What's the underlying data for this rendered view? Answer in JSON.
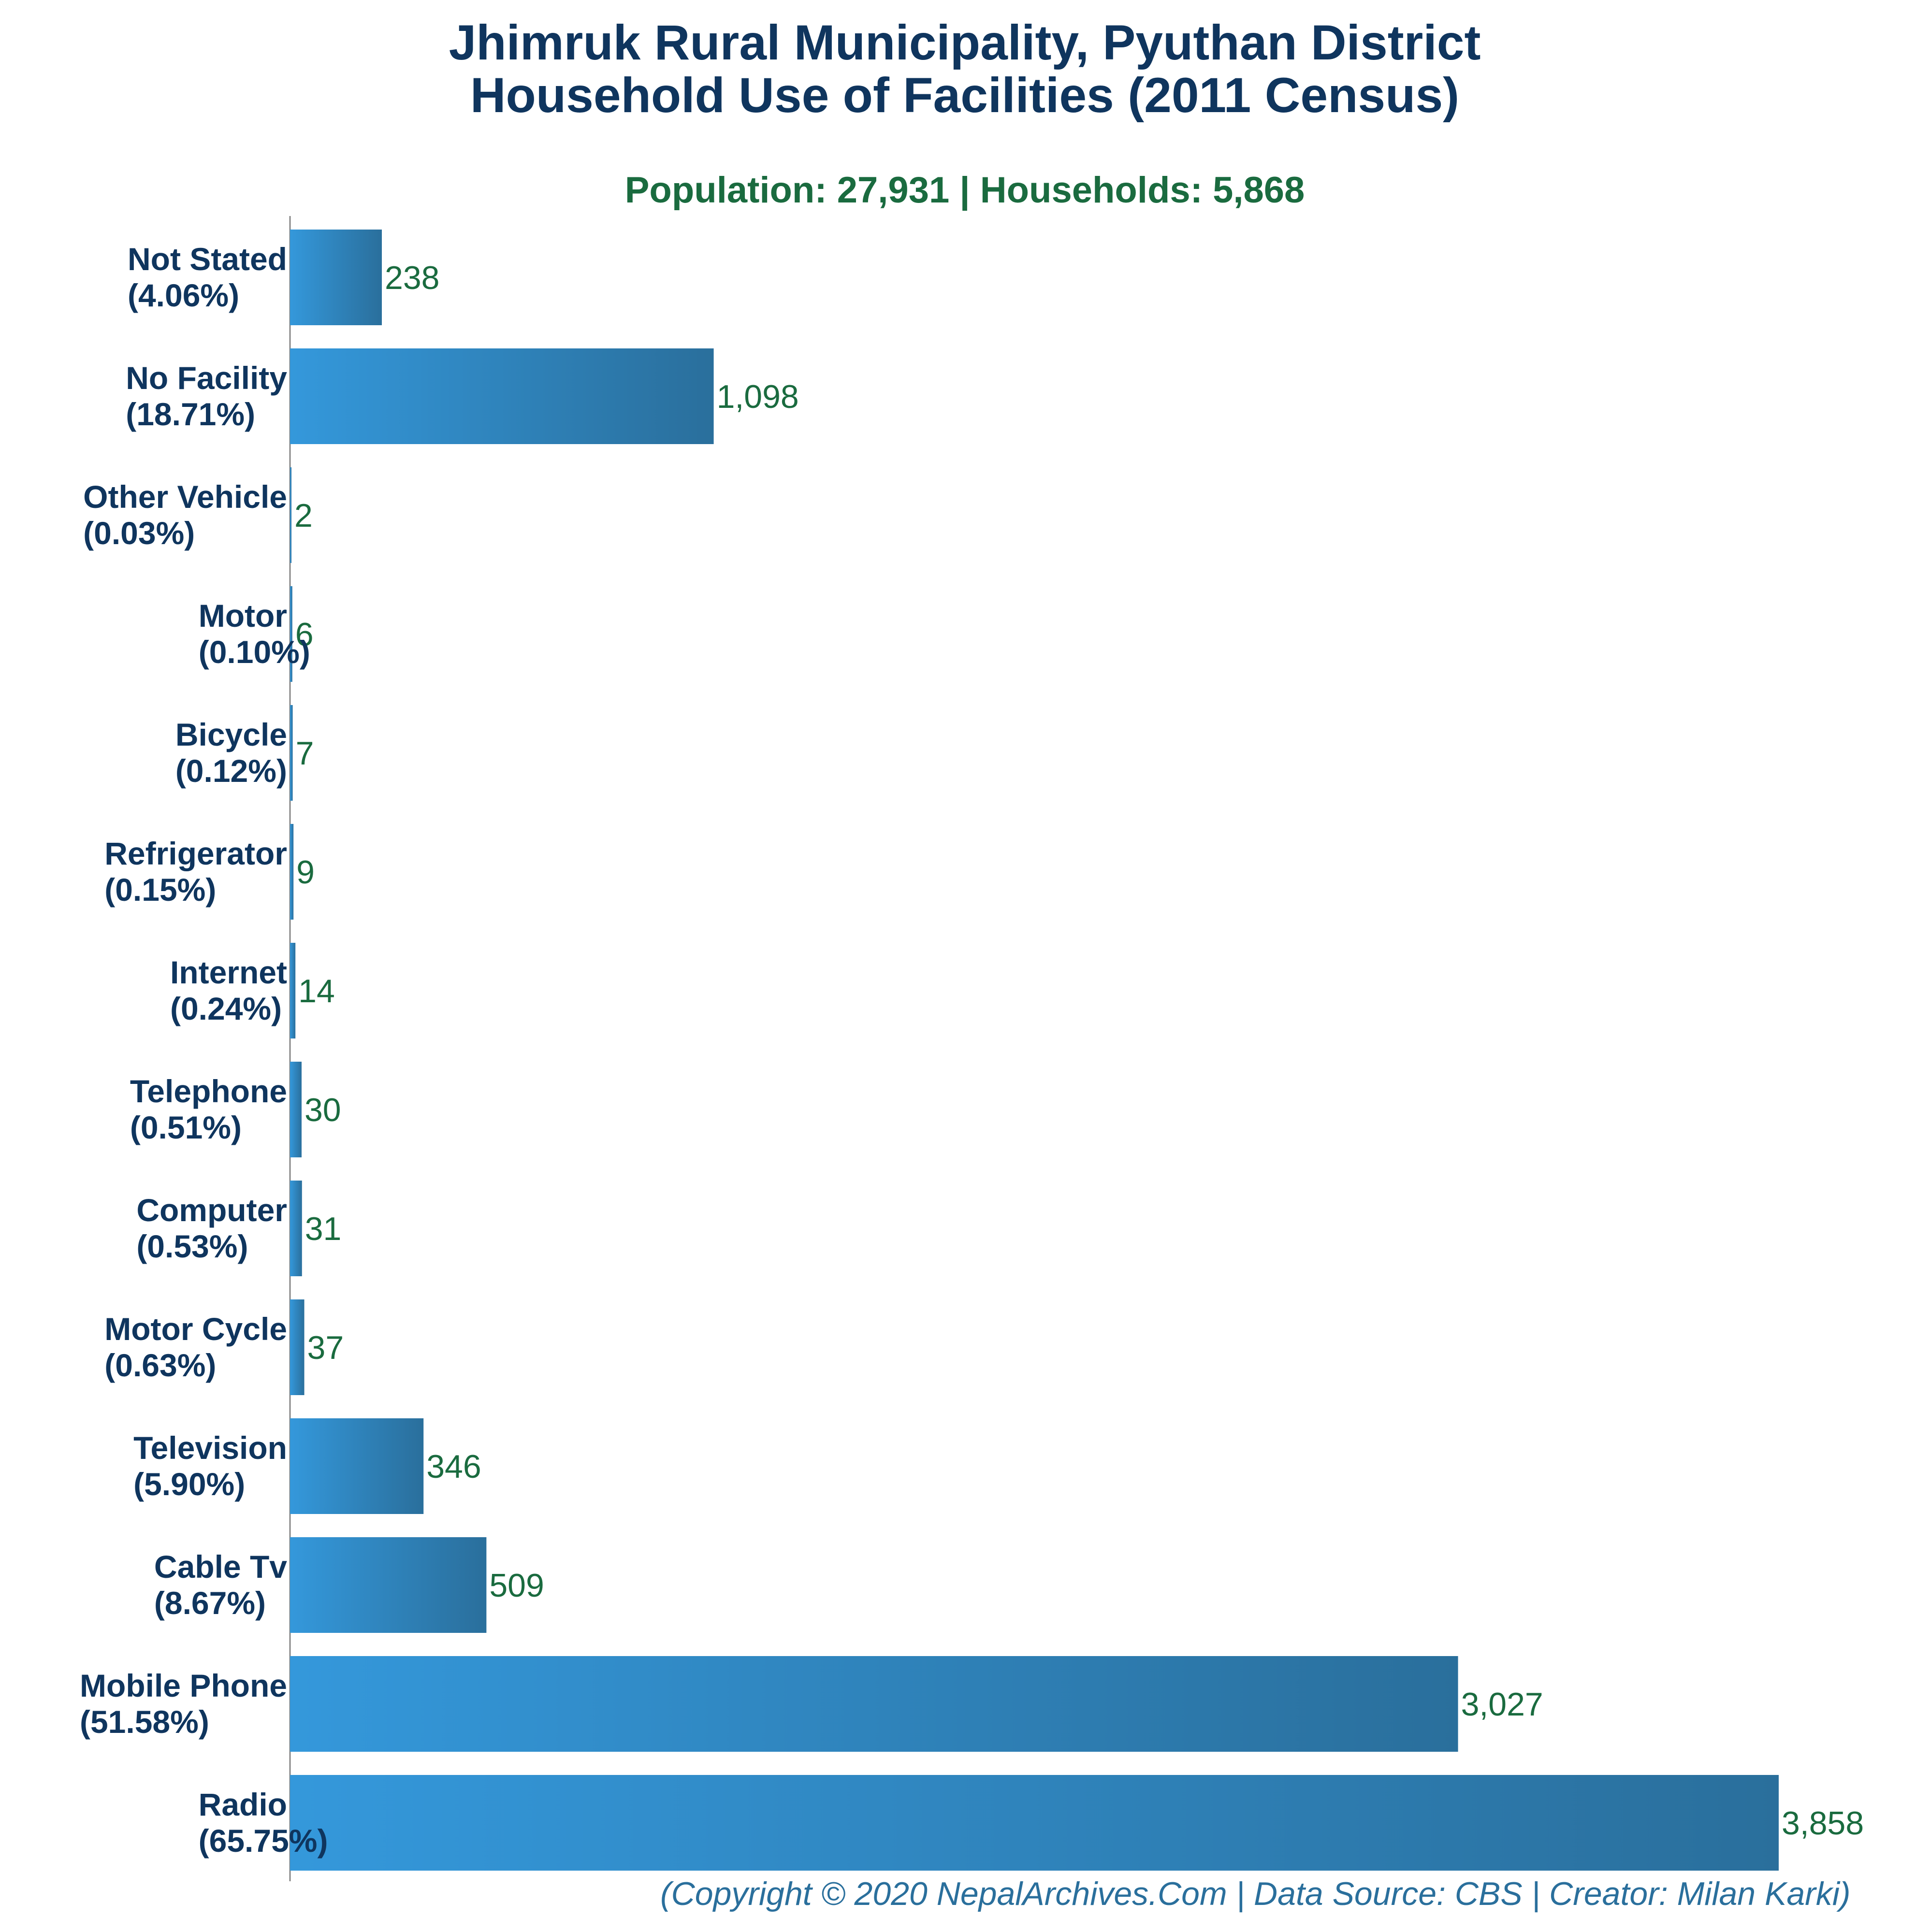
{
  "chart_data": {
    "type": "bar",
    "orientation": "horizontal",
    "title_line1": "Jhimruk Rural Municipality, Pyuthan District",
    "title_line2": "Household Use of Facilities (2011 Census)",
    "subtitle": "Population: 27,931 | Households: 5,868",
    "footer": "(Copyright © 2020 NepalArchives.Com | Data Source: CBS | Creator: Milan Karki)",
    "xlabel": "",
    "ylabel": "",
    "xlim": [
      0,
      3858
    ],
    "grid": false,
    "legend": "none",
    "categories": [
      {
        "name": "Not Stated",
        "pct": "(4.06%)",
        "value": 238,
        "label": "238"
      },
      {
        "name": "No Facility",
        "pct": "(18.71%)",
        "value": 1098,
        "label": "1,098"
      },
      {
        "name": "Other Vehicle",
        "pct": "(0.03%)",
        "value": 2,
        "label": "2"
      },
      {
        "name": "Motor",
        "pct": "(0.10%)",
        "value": 6,
        "label": "6"
      },
      {
        "name": "Bicycle",
        "pct": "(0.12%)",
        "value": 7,
        "label": "7"
      },
      {
        "name": "Refrigerator",
        "pct": "(0.15%)",
        "value": 9,
        "label": "9"
      },
      {
        "name": "Internet",
        "pct": "(0.24%)",
        "value": 14,
        "label": "14"
      },
      {
        "name": "Telephone",
        "pct": "(0.51%)",
        "value": 30,
        "label": "30"
      },
      {
        "name": "Computer",
        "pct": "(0.53%)",
        "value": 31,
        "label": "31"
      },
      {
        "name": "Motor Cycle",
        "pct": "(0.63%)",
        "value": 37,
        "label": "37"
      },
      {
        "name": "Television",
        "pct": "(5.90%)",
        "value": 346,
        "label": "346"
      },
      {
        "name": "Cable Tv",
        "pct": "(8.67%)",
        "value": 509,
        "label": "509"
      },
      {
        "name": "Mobile Phone",
        "pct": "(51.58%)",
        "value": 3027,
        "label": "3,027"
      },
      {
        "name": "Radio",
        "pct": "(65.75%)",
        "value": 3858,
        "label": "3,858"
      }
    ]
  },
  "colors": {
    "title": "#0f355e",
    "subtitle": "#1a6b3f",
    "category_label": "#0f355e",
    "value_label": "#1a6b3f",
    "bar_start": "#3498db",
    "bar_end": "#2a6f9c",
    "footer": "#2a6f9c",
    "axis": "#888888"
  }
}
